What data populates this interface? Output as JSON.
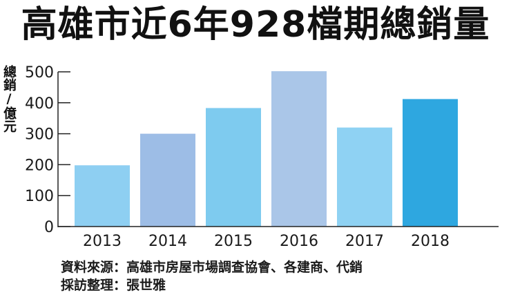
{
  "title": "高雄市近6年928檔期總銷量",
  "chart_data": {
    "type": "bar",
    "title": "高雄市近6年928檔期總銷量",
    "ylabel": "總銷/億元",
    "xlabel": "",
    "categories": [
      "2013",
      "2014",
      "2015",
      "2016",
      "2017",
      "2018"
    ],
    "values": [
      198,
      300,
      383,
      502,
      320,
      412
    ],
    "ylim": [
      0,
      500
    ],
    "yticks": [
      0,
      100,
      200,
      300,
      400,
      500
    ],
    "colors": [
      "#8ecff2",
      "#9dbde6",
      "#7ecbef",
      "#aac6e8",
      "#8fd2f3",
      "#2ea7e0"
    ],
    "grid": false,
    "legend": "none"
  },
  "source": {
    "line1": "資料來源：高雄市房屋市場調查協會、各建商、代銷",
    "line2": "採訪整理：張世雅"
  }
}
